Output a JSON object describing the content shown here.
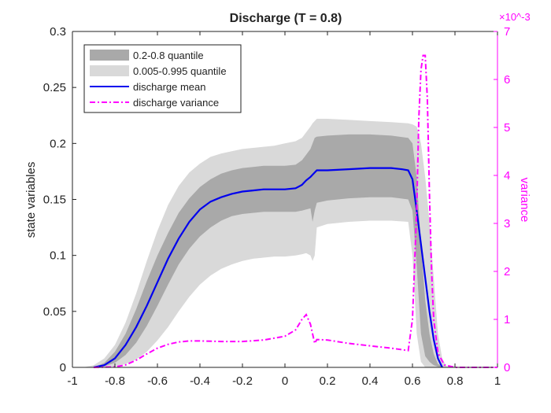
{
  "chart_data": {
    "type": "area",
    "title": "Discharge (T = 0.8)",
    "xlabel": "",
    "ylabel": "state variables",
    "ylabel_right": "variance",
    "right_axis_multiplier": "×10^-3",
    "xlim": [
      -1,
      1
    ],
    "ylim": [
      0,
      0.3
    ],
    "ylim_right": [
      0,
      7
    ],
    "x_ticks": [
      "-1",
      "-0.8",
      "-0.6",
      "-0.4",
      "-0.2",
      "0",
      "0.2",
      "0.4",
      "0.6",
      "0.8",
      "1"
    ],
    "y_ticks": [
      "0",
      "0.05",
      "0.1",
      "0.15",
      "0.2",
      "0.25",
      "0.3"
    ],
    "y_ticks_right": [
      "0",
      "1",
      "2",
      "3",
      "4",
      "5",
      "6",
      "7"
    ],
    "legend_position": "top-left",
    "colors": {
      "band_inner": "#a9a9a9",
      "band_outer": "#d9d9d9",
      "mean": "#0000ee",
      "variance": "#ff00ff"
    },
    "series": [
      {
        "name": "0.2-0.8 quantile",
        "kind": "band",
        "x": [
          -0.9,
          -0.85,
          -0.8,
          -0.75,
          -0.7,
          -0.65,
          -0.6,
          -0.55,
          -0.5,
          -0.45,
          -0.4,
          -0.35,
          -0.3,
          -0.25,
          -0.2,
          -0.15,
          -0.1,
          -0.05,
          0.0,
          0.05,
          0.08,
          0.1,
          0.12,
          0.13,
          0.14,
          0.15,
          0.2,
          0.3,
          0.4,
          0.5,
          0.58,
          0.6,
          0.62,
          0.64,
          0.66,
          0.68,
          0.7,
          0.72,
          0.75
        ],
        "lower": [
          0,
          0.001,
          0.004,
          0.011,
          0.022,
          0.037,
          0.055,
          0.074,
          0.092,
          0.106,
          0.117,
          0.125,
          0.131,
          0.135,
          0.137,
          0.138,
          0.139,
          0.139,
          0.139,
          0.139,
          0.14,
          0.141,
          0.142,
          0.13,
          0.14,
          0.147,
          0.149,
          0.151,
          0.152,
          0.152,
          0.15,
          0.14,
          0.09,
          0.03,
          0.01,
          0.005,
          0.002,
          0.0005,
          0
        ],
        "upper": [
          0,
          0.004,
          0.014,
          0.03,
          0.052,
          0.077,
          0.1,
          0.12,
          0.138,
          0.151,
          0.161,
          0.168,
          0.173,
          0.176,
          0.178,
          0.179,
          0.18,
          0.18,
          0.18,
          0.181,
          0.185,
          0.19,
          0.195,
          0.2,
          0.205,
          0.206,
          0.207,
          0.208,
          0.208,
          0.207,
          0.205,
          0.2,
          0.17,
          0.11,
          0.06,
          0.03,
          0.012,
          0.003,
          0
        ]
      },
      {
        "name": "0.005-0.995 quantile",
        "kind": "band",
        "x": [
          -0.95,
          -0.9,
          -0.85,
          -0.8,
          -0.75,
          -0.7,
          -0.65,
          -0.6,
          -0.55,
          -0.5,
          -0.45,
          -0.4,
          -0.35,
          -0.3,
          -0.25,
          -0.2,
          -0.15,
          -0.1,
          -0.05,
          0.0,
          0.05,
          0.08,
          0.1,
          0.12,
          0.13,
          0.14,
          0.15,
          0.2,
          0.3,
          0.4,
          0.5,
          0.58,
          0.6,
          0.62,
          0.64,
          0.66,
          0.68,
          0.7,
          0.72,
          0.74,
          0.76,
          0.78
        ],
        "lower": [
          0,
          0,
          0,
          0.001,
          0.003,
          0.007,
          0.014,
          0.024,
          0.036,
          0.05,
          0.063,
          0.074,
          0.082,
          0.088,
          0.092,
          0.095,
          0.097,
          0.098,
          0.099,
          0.099,
          0.1,
          0.101,
          0.102,
          0.1,
          0.095,
          0.1,
          0.125,
          0.128,
          0.13,
          0.131,
          0.131,
          0.13,
          0.1,
          0.03,
          0.005,
          0,
          0,
          0,
          0,
          0,
          0,
          0
        ],
        "upper": [
          0,
          0.002,
          0.008,
          0.02,
          0.04,
          0.066,
          0.095,
          0.122,
          0.145,
          0.162,
          0.174,
          0.182,
          0.188,
          0.191,
          0.193,
          0.195,
          0.196,
          0.197,
          0.198,
          0.2,
          0.202,
          0.205,
          0.21,
          0.215,
          0.218,
          0.22,
          0.222,
          0.222,
          0.221,
          0.22,
          0.219,
          0.218,
          0.217,
          0.215,
          0.2,
          0.17,
          0.13,
          0.08,
          0.03,
          0.008,
          0.001,
          0
        ]
      },
      {
        "name": "discharge mean",
        "kind": "line",
        "axis": "left",
        "x": [
          -0.9,
          -0.85,
          -0.8,
          -0.75,
          -0.7,
          -0.65,
          -0.6,
          -0.55,
          -0.5,
          -0.45,
          -0.4,
          -0.35,
          -0.3,
          -0.25,
          -0.2,
          -0.15,
          -0.1,
          -0.05,
          0.0,
          0.05,
          0.08,
          0.1,
          0.12,
          0.14,
          0.15,
          0.2,
          0.3,
          0.4,
          0.5,
          0.55,
          0.58,
          0.6,
          0.62,
          0.64,
          0.66,
          0.68,
          0.7,
          0.72,
          0.74
        ],
        "values": [
          0,
          0.002,
          0.008,
          0.02,
          0.036,
          0.055,
          0.076,
          0.097,
          0.115,
          0.13,
          0.141,
          0.148,
          0.152,
          0.155,
          0.157,
          0.158,
          0.159,
          0.159,
          0.159,
          0.16,
          0.163,
          0.167,
          0.17,
          0.174,
          0.176,
          0.176,
          0.177,
          0.178,
          0.178,
          0.177,
          0.176,
          0.168,
          0.14,
          0.11,
          0.08,
          0.05,
          0.025,
          0.008,
          0
        ]
      },
      {
        "name": "discharge variance",
        "kind": "line",
        "axis": "right",
        "x": [
          -0.9,
          -0.8,
          -0.75,
          -0.7,
          -0.65,
          -0.6,
          -0.55,
          -0.5,
          -0.45,
          -0.4,
          -0.3,
          -0.2,
          -0.1,
          0.0,
          0.05,
          0.08,
          0.1,
          0.12,
          0.14,
          0.15,
          0.2,
          0.3,
          0.4,
          0.5,
          0.58,
          0.6,
          0.62,
          0.63,
          0.64,
          0.65,
          0.66,
          0.67,
          0.68,
          0.69,
          0.7,
          0.72,
          0.75,
          0.8,
          1.0
        ],
        "values": [
          0,
          0.01,
          0.05,
          0.15,
          0.28,
          0.4,
          0.48,
          0.53,
          0.55,
          0.55,
          0.54,
          0.54,
          0.57,
          0.65,
          0.78,
          1.0,
          1.1,
          0.9,
          0.5,
          0.58,
          0.57,
          0.5,
          0.45,
          0.4,
          0.35,
          1.0,
          3.3,
          5.2,
          6.2,
          6.5,
          6.5,
          5.6,
          3.6,
          2.0,
          1.0,
          0.3,
          0.05,
          0,
          0
        ]
      }
    ]
  }
}
